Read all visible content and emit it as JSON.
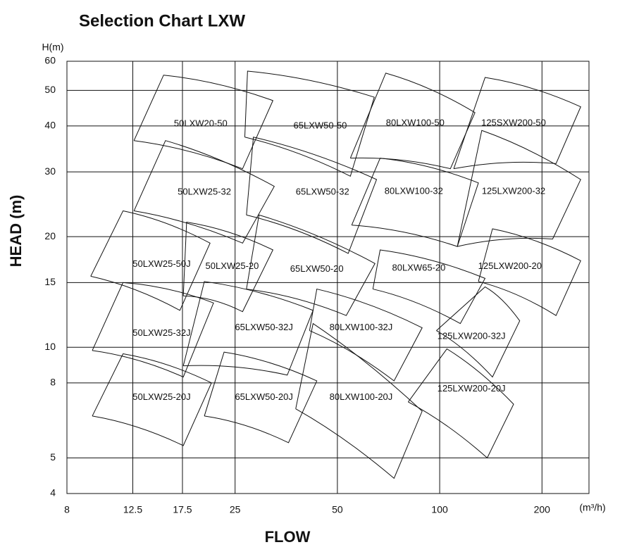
{
  "chart_data": {
    "type": "region-map",
    "title": "Selection Chart LXW",
    "x_label": "FLOW",
    "y_label": "HEAD (m)",
    "x_unit": "(m³/h)",
    "y_unit": "H(m)",
    "log_x": true,
    "log_y": true,
    "grid": true,
    "color": "#1f63b4",
    "xlim": [
      8,
      275
    ],
    "ylim": [
      4,
      60
    ],
    "xticks": [
      8,
      12.5,
      17.5,
      25,
      50,
      100,
      200
    ],
    "yticks": [
      4,
      5,
      8,
      10,
      15,
      20,
      30,
      40,
      50,
      60
    ],
    "regions": [
      {
        "label": "50LXW20-50",
        "flow": [
          12.6,
          15.4,
          32.3,
          26.3
        ],
        "head": [
          36.5,
          55.0,
          46.9,
          30.6
        ],
        "label_flow": 19.8,
        "label_head": 40.5
      },
      {
        "label": "65LXW50-50",
        "flow": [
          26.7,
          27.2,
          64.2,
          54.6
        ],
        "head": [
          37.3,
          56.4,
          47.9,
          29.2
        ],
        "label_flow": 44.5,
        "label_head": 40.0
      },
      {
        "label": "80LXW100-50",
        "flow": [
          54.6,
          69.4,
          127,
          107.5
        ],
        "head": [
          32.7,
          55.7,
          43.5,
          30.6
        ],
        "label_flow": 84.7,
        "label_head": 40.7
      },
      {
        "label": "125SXW200-50",
        "flow": [
          110,
          136,
          260,
          220
        ],
        "head": [
          30.6,
          54.2,
          45.1,
          31.6
        ],
        "label_flow": 165,
        "label_head": 40.7
      },
      {
        "label": "50LXW25-32",
        "flow": [
          12.6,
          15.6,
          32.6,
          26.3
        ],
        "head": [
          23.5,
          36.5,
          27.4,
          19.2
        ],
        "label_flow": 20.3,
        "label_head": 26.4
      },
      {
        "label": "65LXW50-32",
        "flow": [
          27.0,
          28.3,
          65.2,
          53.8
        ],
        "head": [
          22.9,
          37.3,
          28.6,
          18.0
        ],
        "label_flow": 45.2,
        "label_head": 26.4
      },
      {
        "label": "80LXW100-32",
        "flow": [
          55.1,
          66.8,
          130,
          112.7
        ],
        "head": [
          21.5,
          32.7,
          28.0,
          18.8
        ],
        "label_flow": 83.9,
        "label_head": 26.5
      },
      {
        "label": "125LXW200-32",
        "flow": [
          112.7,
          133,
          260,
          215
        ],
        "head": [
          18.8,
          38.9,
          28.6,
          19.7
        ],
        "label_flow": 165,
        "label_head": 26.5
      },
      {
        "label": "50LXW25-50J",
        "flow": [
          9.4,
          11.7,
          21.1,
          17.2
        ],
        "head": [
          15.6,
          23.5,
          19.2,
          12.6
        ],
        "label_flow": 15.2,
        "label_head": 16.8
      },
      {
        "label": "50LXW25-20",
        "flow": [
          17.6,
          18.0,
          32.3,
          26.3
        ],
        "head": [
          13.8,
          21.9,
          18.4,
          12.5
        ],
        "label_flow": 24.5,
        "label_head": 16.6
      },
      {
        "label": "65LXW50-20",
        "flow": [
          27.0,
          29.4,
          64.5,
          53.1
        ],
        "head": [
          14.4,
          22.9,
          16.9,
          12.2
        ],
        "label_flow": 43.5,
        "label_head": 16.3
      },
      {
        "label": "80LXW65-20",
        "flow": [
          63.6,
          66.8,
          136,
          115
        ],
        "head": [
          14.4,
          18.4,
          15.4,
          11.6
        ],
        "label_flow": 86.8,
        "label_head": 16.4
      },
      {
        "label": "125LXW200-20",
        "flow": [
          130,
          143,
          260,
          220
        ],
        "head": [
          15.1,
          21.0,
          17.2,
          12.2
        ],
        "label_flow": 161,
        "label_head": 16.6
      },
      {
        "label": "50LXW25-32J",
        "flow": [
          9.5,
          11.7,
          21.6,
          17.6
        ],
        "head": [
          9.8,
          15.0,
          13.2,
          8.3
        ],
        "label_flow": 15.2,
        "label_head": 10.9
      },
      {
        "label": "65LXW50-32J",
        "flow": [
          17.6,
          20.3,
          42.4,
          35.6
        ],
        "head": [
          8.9,
          15.1,
          12.6,
          8.4
        ],
        "label_flow": 30.4,
        "label_head": 11.3
      },
      {
        "label": "80LXW100-32J",
        "flow": [
          41.4,
          43.5,
          88.8,
          73.4
        ],
        "head": [
          11.1,
          14.4,
          11.3,
          8.1
        ],
        "label_flow": 58.7,
        "label_head": 11.3
      },
      {
        "label": "125LXW200-32J",
        "flow": [
          97.8,
          136,
          172,
          143
        ],
        "head": [
          11.1,
          14.6,
          11.8,
          8.3
        ],
        "label_flow": 124,
        "label_head": 10.7
      },
      {
        "label": "50LXW25-20J",
        "flow": [
          9.5,
          11.7,
          21.3,
          17.6
        ],
        "head": [
          6.5,
          9.6,
          8.0,
          5.4
        ],
        "label_flow": 15.2,
        "label_head": 7.3
      },
      {
        "label": "65LXW50-20J",
        "flow": [
          20.3,
          23.2,
          43.5,
          35.9
        ],
        "head": [
          6.5,
          9.7,
          8.1,
          5.5
        ],
        "label_flow": 30.4,
        "label_head": 7.3
      },
      {
        "label": "80LXW100-20J",
        "flow": [
          37.7,
          42.4,
          88.8,
          73.4
        ],
        "head": [
          6.8,
          11.6,
          6.7,
          4.4
        ],
        "label_flow": 58.7,
        "label_head": 7.3
      },
      {
        "label": "125LXW200-20J",
        "flow": [
          80.8,
          105,
          165,
          138
        ],
        "head": [
          7.1,
          9.9,
          7.0,
          5.0
        ],
        "label_flow": 124,
        "label_head": 7.7
      }
    ]
  }
}
